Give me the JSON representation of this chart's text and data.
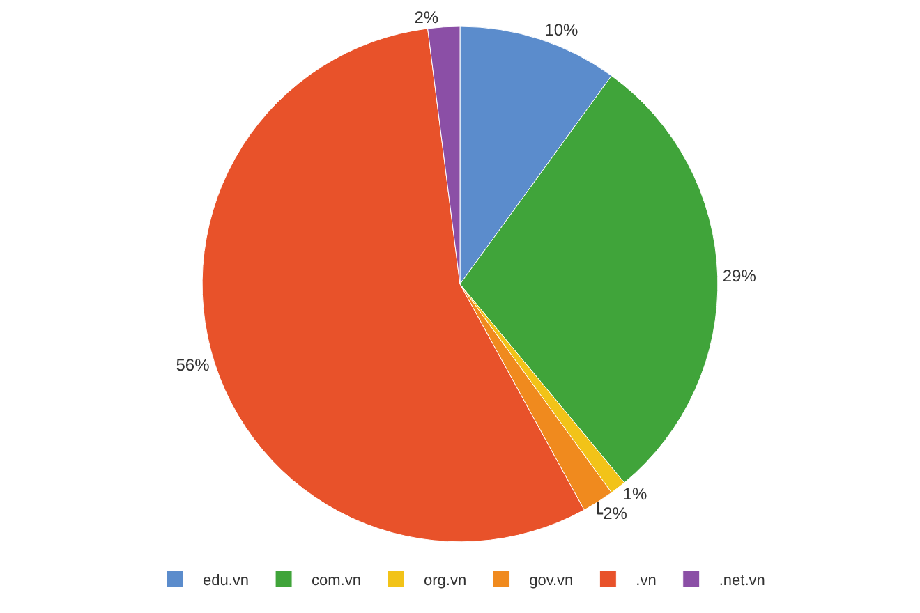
{
  "chart_data": {
    "type": "pie",
    "categories": [
      "edu.vn",
      "com.vn",
      "org.vn",
      "gov.vn",
      ".vn",
      ".net.vn"
    ],
    "values": [
      10,
      29,
      1,
      2,
      56,
      2
    ],
    "value_labels": [
      "10%",
      "29%",
      "1%",
      "2%",
      "56%",
      "2%"
    ],
    "colors": [
      "#5b8ccc",
      "#40a43a",
      "#f2c318",
      "#f08a1e",
      "#e8522a",
      "#8b4fa6"
    ],
    "legend": "bottom"
  }
}
